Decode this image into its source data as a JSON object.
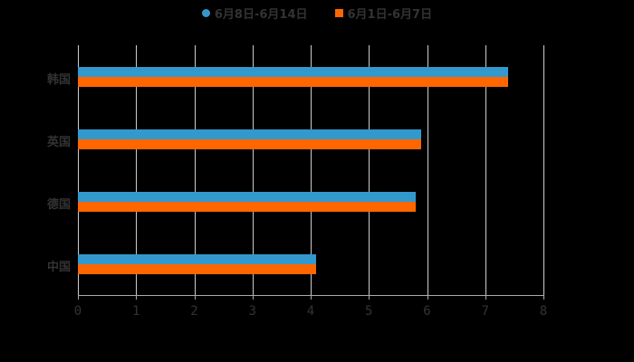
{
  "chart_data": {
    "type": "bar",
    "orientation": "horizontal",
    "title": "",
    "xlabel": "",
    "ylabel": "",
    "categories": [
      "韩国",
      "英国",
      "德国",
      "中国"
    ],
    "series": [
      {
        "name": "6月8日-6月14日",
        "color": "#3399cc",
        "values": [
          7.4,
          5.9,
          5.8,
          4.1
        ]
      },
      {
        "name": "6月1日-6月7日",
        "color": "#ff6600",
        "values": [
          7.4,
          5.9,
          5.8,
          4.1
        ]
      }
    ],
    "xlim": [
      0,
      8
    ],
    "xticks": [
      "0",
      "1",
      "2",
      "3",
      "4",
      "5",
      "6",
      "7",
      "8"
    ],
    "grid": true,
    "legend_position": "top"
  },
  "legend": {
    "items": [
      {
        "label": "6月8日-6月14日",
        "color": "#3399cc",
        "shape": "circle"
      },
      {
        "label": "6月1日-6月7日",
        "color": "#ff6600",
        "shape": "square"
      }
    ]
  }
}
